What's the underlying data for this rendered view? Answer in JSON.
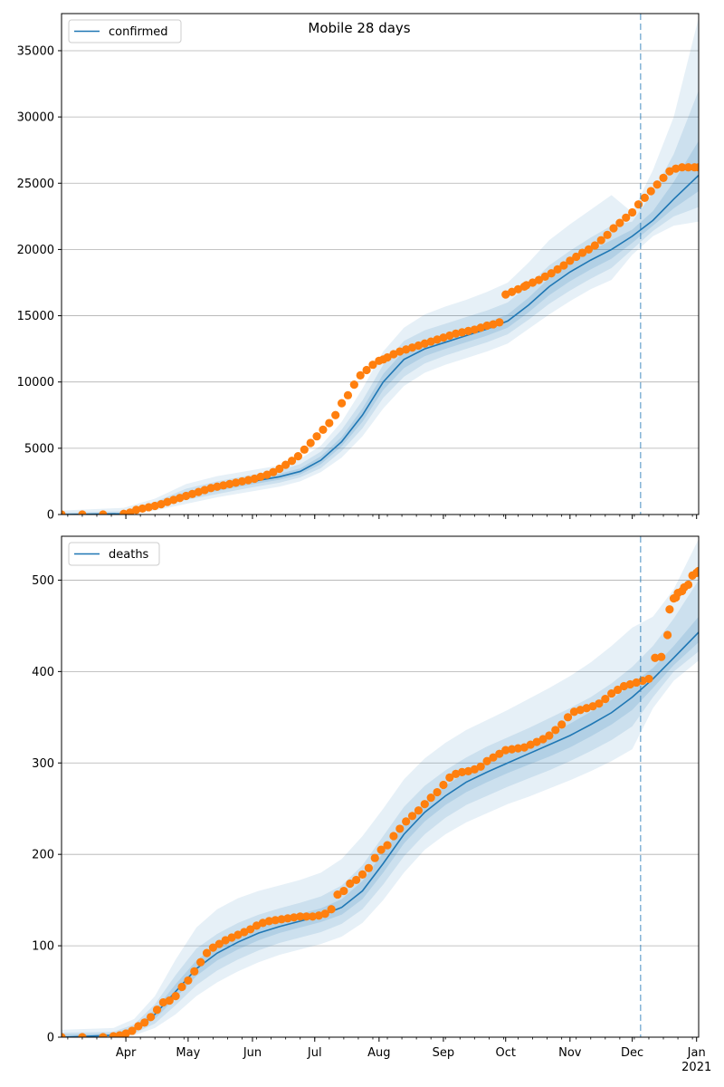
{
  "figure": {
    "title": "Mobile 28 days"
  },
  "colors": {
    "model": "#1f77b4",
    "observed": "#ff7f0e",
    "band": "#1f77b4",
    "grid": "#b0b0b0",
    "vline": "#1f77b4"
  },
  "chart_data": [
    {
      "type": "line",
      "legend": "confirmed",
      "legend_loc": "upper-left",
      "x_unit": "days since 2020-03-01",
      "ylim": [
        0,
        37800
      ],
      "yticks": [
        0,
        5000,
        10000,
        15000,
        20000,
        25000,
        30000,
        35000
      ],
      "grid_y": true,
      "forecast_start_day": 279,
      "model": {
        "x": [
          0,
          30,
          45,
          60,
          75,
          90,
          105,
          115,
          125,
          135,
          145,
          155,
          165,
          175,
          185,
          195,
          205,
          215,
          225,
          235,
          245,
          255,
          265,
          275,
          285,
          295,
          307
        ],
        "y": [
          0,
          60,
          700,
          1500,
          2000,
          2450,
          2850,
          3250,
          4100,
          5500,
          7500,
          10000,
          11700,
          12500,
          13000,
          13500,
          14000,
          14600,
          15800,
          17200,
          18300,
          19200,
          20000,
          21000,
          22200,
          23800,
          25600
        ]
      },
      "bands": [
        {
          "level": "outer",
          "lower": [
            0,
            0,
            300,
            800,
            1300,
            1700,
            2100,
            2500,
            3200,
            4300,
            5900,
            8000,
            9700,
            10700,
            11300,
            11800,
            12300,
            12900,
            14000,
            15100,
            16100,
            17000,
            17700,
            19600,
            21000,
            21800,
            22100
          ],
          "upper": [
            300,
            500,
            1200,
            2300,
            2900,
            3300,
            3700,
            4200,
            5200,
            7000,
            9500,
            12300,
            14100,
            15100,
            15700,
            16200,
            16800,
            17500,
            19000,
            20700,
            21900,
            23000,
            24100,
            22800,
            26000,
            30000,
            37500
          ]
        },
        {
          "level": "middle",
          "lower": [
            0,
            20,
            450,
            1100,
            1550,
            2000,
            2400,
            2800,
            3500,
            4800,
            6500,
            8800,
            10400,
            11400,
            12000,
            12500,
            13000,
            13600,
            14700,
            15900,
            16900,
            17800,
            18600,
            20000,
            21400,
            22500,
            23200
          ],
          "upper": [
            150,
            250,
            950,
            1950,
            2500,
            2950,
            3350,
            3800,
            4750,
            6400,
            8600,
            11300,
            13100,
            13900,
            14400,
            14900,
            15400,
            16000,
            17300,
            18800,
            19900,
            20900,
            21800,
            22100,
            24300,
            27200,
            32000
          ]
        },
        {
          "level": "inner",
          "lower": [
            0,
            40,
            580,
            1300,
            1780,
            2230,
            2620,
            3020,
            3800,
            5150,
            7000,
            9400,
            11050,
            11950,
            12500,
            13000,
            13500,
            14100,
            15250,
            16550,
            17600,
            18500,
            19300,
            20500,
            21800,
            23100,
            24400
          ],
          "upper": [
            80,
            120,
            820,
            1700,
            2220,
            2670,
            3080,
            3480,
            4400,
            5850,
            8000,
            10600,
            12350,
            13050,
            13500,
            14000,
            14500,
            15100,
            16350,
            17850,
            19000,
            19900,
            20700,
            21500,
            22900,
            25100,
            28200
          ]
        }
      ],
      "observed": {
        "x": [
          0,
          10,
          20,
          30,
          33,
          36,
          39,
          42,
          45,
          48,
          51,
          54,
          57,
          60,
          63,
          66,
          69,
          72,
          75,
          78,
          81,
          84,
          87,
          90,
          93,
          96,
          99,
          102,
          105,
          108,
          111,
          114,
          117,
          120,
          123,
          126,
          129,
          132,
          135,
          138,
          141,
          144,
          147,
          150,
          153,
          155,
          157,
          160,
          163,
          166,
          169,
          172,
          175,
          178,
          181,
          184,
          187,
          190,
          193,
          196,
          199,
          202,
          205,
          208,
          211,
          214,
          217,
          220,
          223,
          224,
          227,
          230,
          233,
          236,
          239,
          242,
          245,
          248,
          251,
          254,
          257,
          260,
          263,
          266,
          269,
          272,
          275,
          278,
          281,
          284,
          287,
          290,
          293,
          296,
          299,
          302,
          305,
          307
        ],
        "y": [
          0,
          0,
          0,
          50,
          150,
          350,
          450,
          550,
          650,
          780,
          950,
          1100,
          1250,
          1400,
          1550,
          1700,
          1850,
          2000,
          2100,
          2200,
          2300,
          2400,
          2500,
          2600,
          2700,
          2850,
          3000,
          3200,
          3450,
          3750,
          4050,
          4400,
          4900,
          5400,
          5900,
          6400,
          6900,
          7500,
          8400,
          9000,
          9800,
          10500,
          10900,
          11300,
          11600,
          11700,
          11850,
          12100,
          12300,
          12450,
          12600,
          12750,
          12900,
          13050,
          13200,
          13350,
          13500,
          13650,
          13750,
          13850,
          13950,
          14100,
          14250,
          14350,
          14500,
          16600,
          16800,
          17000,
          17200,
          17300,
          17500,
          17700,
          17950,
          18200,
          18500,
          18800,
          19150,
          19450,
          19750,
          20000,
          20300,
          20700,
          21100,
          21600,
          22000,
          22400,
          22800,
          23400,
          23900,
          24400,
          24900,
          25400,
          25900,
          26100,
          26200,
          26200,
          26200,
          26200
        ]
      }
    },
    {
      "type": "line",
      "legend": "deaths",
      "legend_loc": "upper-left",
      "x_unit": "days since 2020-03-01",
      "ylim": [
        0,
        548
      ],
      "yticks": [
        0,
        100,
        200,
        300,
        400,
        500
      ],
      "grid_y": true,
      "forecast_start_day": 279,
      "xticks": [
        {
          "day": 31,
          "label": "Apr"
        },
        {
          "day": 61,
          "label": "May"
        },
        {
          "day": 92,
          "label": "Jun"
        },
        {
          "day": 122,
          "label": "Jul"
        },
        {
          "day": 153,
          "label": "Aug"
        },
        {
          "day": 184,
          "label": "Sep"
        },
        {
          "day": 214,
          "label": "Oct"
        },
        {
          "day": 245,
          "label": "Nov"
        },
        {
          "day": 275,
          "label": "Dec"
        },
        {
          "day": 306,
          "label": "Jan",
          "sublabel": "2021"
        }
      ],
      "model": {
        "x": [
          0,
          25,
          35,
          45,
          55,
          65,
          75,
          85,
          95,
          105,
          115,
          125,
          135,
          145,
          155,
          165,
          175,
          185,
          195,
          205,
          215,
          225,
          235,
          245,
          255,
          265,
          275,
          285,
          295,
          307
        ],
        "y": [
          0,
          2,
          8,
          25,
          50,
          75,
          92,
          104,
          114,
          121,
          127,
          133,
          142,
          160,
          190,
          222,
          246,
          264,
          279,
          290,
          300,
          310,
          320,
          330,
          342,
          355,
          372,
          392,
          415,
          443
        ]
      },
      "bands": [
        {
          "level": "outer",
          "lower": [
            0,
            0,
            2,
            10,
            25,
            45,
            60,
            72,
            82,
            90,
            96,
            102,
            110,
            125,
            150,
            180,
            205,
            222,
            235,
            245,
            255,
            263,
            272,
            281,
            291,
            302,
            315,
            360,
            390,
            412
          ],
          "upper": [
            8,
            10,
            20,
            45,
            85,
            120,
            140,
            152,
            160,
            166,
            172,
            180,
            195,
            220,
            250,
            282,
            305,
            322,
            336,
            347,
            358,
            370,
            382,
            395,
            410,
            428,
            448,
            460,
            490,
            545
          ]
        },
        {
          "level": "middle",
          "lower": [
            0,
            0,
            4,
            15,
            35,
            57,
            73,
            85,
            95,
            103,
            109,
            115,
            124,
            140,
            167,
            198,
            222,
            240,
            254,
            264,
            274,
            283,
            292,
            302,
            313,
            325,
            340,
            372,
            400,
            422
          ],
          "upper": [
            5,
            6,
            14,
            36,
            68,
            97,
            113,
            125,
            134,
            141,
            147,
            154,
            166,
            188,
            220,
            252,
            275,
            292,
            306,
            318,
            328,
            338,
            349,
            360,
            372,
            387,
            405,
            428,
            458,
            500
          ]
        },
        {
          "level": "inner",
          "lower": [
            0,
            1,
            6,
            20,
            43,
            67,
            84,
            96,
            106,
            114,
            120,
            126,
            134,
            151,
            180,
            212,
            236,
            254,
            268,
            279,
            289,
            298,
            307,
            317,
            329,
            342,
            358,
            382,
            407,
            432
          ],
          "upper": [
            3,
            4,
            11,
            30,
            58,
            84,
            101,
            112,
            122,
            129,
            135,
            141,
            151,
            171,
            202,
            234,
            257,
            275,
            290,
            301,
            311,
            321,
            332,
            343,
            356,
            369,
            387,
            404,
            428,
            460
          ]
        }
      ],
      "observed": {
        "x": [
          0,
          10,
          20,
          25,
          28,
          31,
          34,
          37,
          40,
          43,
          46,
          49,
          52,
          55,
          58,
          61,
          64,
          67,
          70,
          73,
          76,
          79,
          82,
          85,
          88,
          91,
          94,
          97,
          100,
          103,
          106,
          109,
          112,
          115,
          118,
          121,
          124,
          127,
          130,
          133,
          136,
          139,
          142,
          145,
          148,
          151,
          154,
          157,
          160,
          163,
          166,
          169,
          172,
          175,
          178,
          181,
          184,
          187,
          190,
          193,
          196,
          199,
          202,
          205,
          208,
          211,
          214,
          217,
          220,
          223,
          226,
          229,
          232,
          235,
          238,
          241,
          244,
          247,
          250,
          253,
          256,
          259,
          262,
          265,
          268,
          271,
          274,
          277,
          280,
          283,
          286,
          289,
          292,
          293,
          295,
          296,
          297,
          299,
          300,
          302,
          304,
          306,
          307
        ],
        "y": [
          0,
          0,
          0,
          1,
          2,
          4,
          7,
          12,
          16,
          22,
          30,
          38,
          40,
          45,
          55,
          62,
          72,
          82,
          92,
          98,
          102,
          106,
          109,
          112,
          115,
          118,
          122,
          125,
          127,
          128,
          129,
          130,
          131,
          132,
          132,
          132,
          133,
          135,
          140,
          156,
          160,
          168,
          172,
          178,
          185,
          196,
          205,
          210,
          220,
          228,
          236,
          242,
          248,
          255,
          262,
          268,
          276,
          284,
          288,
          290,
          291,
          293,
          296,
          302,
          306,
          310,
          314,
          315,
          316,
          317,
          320,
          323,
          326,
          330,
          336,
          342,
          350,
          356,
          358,
          360,
          362,
          365,
          370,
          376,
          380,
          384,
          386,
          388,
          390,
          392,
          415,
          416,
          440,
          468,
          480,
          481,
          486,
          488,
          492,
          495,
          505,
          508,
          510
        ]
      }
    }
  ]
}
